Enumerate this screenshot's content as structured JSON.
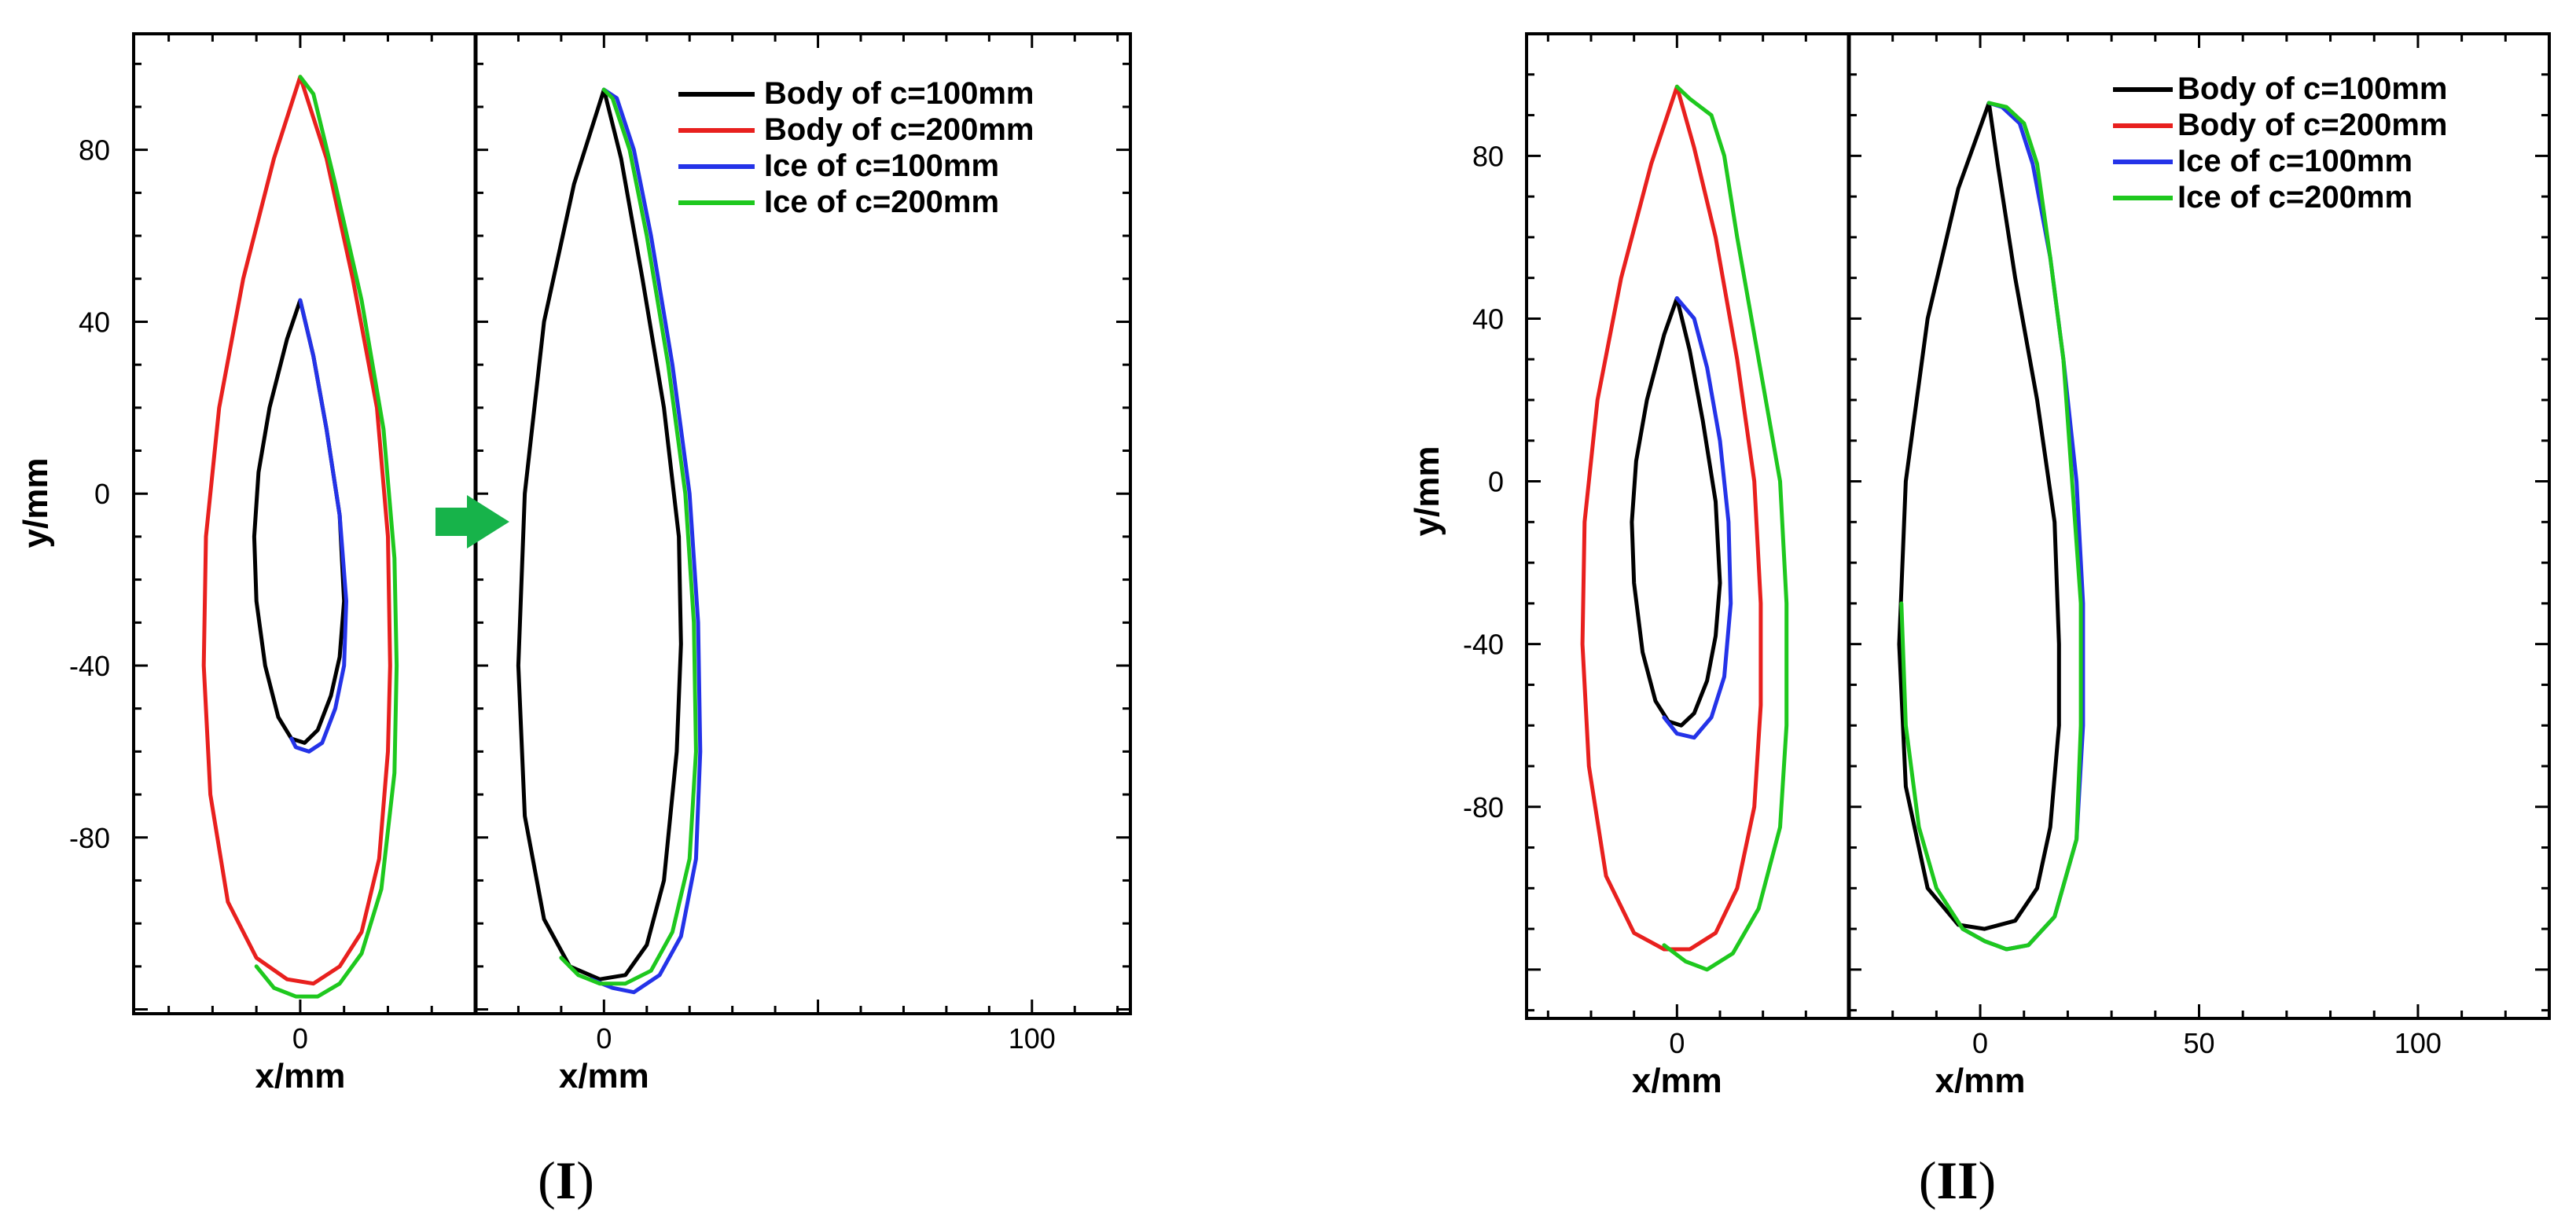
{
  "figure": {
    "panel_labels": [
      {
        "open": "(",
        "roman": "I",
        "close": ")"
      },
      {
        "open": "(",
        "roman": "II",
        "close": ")"
      }
    ]
  },
  "colors": {
    "body_100": "#000000",
    "body_200": "#e8201e",
    "ice_100": "#2433e8",
    "ice_200": "#1ec81e",
    "arrow": "#17b34a"
  },
  "chart_data": [
    {
      "type": "line",
      "id": "panel-I",
      "title": "",
      "subplots": [
        {
          "name": "left-overlay",
          "xlabel": "x/mm",
          "ylabel": "y/mm",
          "xlim": [
            -38,
            40
          ],
          "ylim": [
            -121,
            107
          ],
          "xticks": [
            0
          ],
          "yticks": [
            80,
            40,
            0,
            -40,
            -80
          ]
        },
        {
          "name": "right-scaled",
          "xlabel": "x/mm",
          "ylabel": "",
          "xlim": [
            -30,
            123
          ],
          "ylim": [
            -121,
            107
          ],
          "xticks": [
            0,
            100
          ],
          "yticks": []
        }
      ],
      "legend": {
        "position": "top-right",
        "entries": [
          "Body of c=100mm",
          "Body of c=200mm",
          "Ice of c=100mm",
          "Ice of c=200mm"
        ]
      },
      "annotation": "arrow pointing from left subplot to right subplot",
      "series": [
        {
          "name": "Body of c=100mm",
          "subplot": "left-overlay",
          "points": [
            [
              0,
              45
            ],
            [
              -3,
              36
            ],
            [
              -7,
              20
            ],
            [
              -9.5,
              5
            ],
            [
              -10.5,
              -10
            ],
            [
              -10,
              -25
            ],
            [
              -8,
              -40
            ],
            [
              -5,
              -52
            ],
            [
              -2,
              -57
            ],
            [
              1,
              -58
            ],
            [
              4,
              -55
            ],
            [
              7,
              -47
            ],
            [
              9,
              -38
            ],
            [
              10,
              -25
            ],
            [
              9,
              -5
            ],
            [
              6,
              15
            ],
            [
              3,
              32
            ],
            [
              0,
              45
            ]
          ]
        },
        {
          "name": "Ice of c=100mm",
          "subplot": "left-overlay",
          "points": [
            [
              0,
              45
            ],
            [
              3,
              32
            ],
            [
              6,
              15
            ],
            [
              9,
              -5
            ],
            [
              10.5,
              -25
            ],
            [
              10,
              -40
            ],
            [
              8,
              -50
            ],
            [
              5,
              -58
            ],
            [
              2,
              -60
            ],
            [
              -1,
              -59
            ],
            [
              -2,
              -57
            ]
          ]
        },
        {
          "name": "Body of c=200mm",
          "subplot": "left-overlay",
          "points": [
            [
              0,
              97
            ],
            [
              -6,
              78
            ],
            [
              -13,
              50
            ],
            [
              -18.5,
              20
            ],
            [
              -21.5,
              -10
            ],
            [
              -22,
              -40
            ],
            [
              -20.5,
              -70
            ],
            [
              -16.5,
              -95
            ],
            [
              -10,
              -108
            ],
            [
              -3,
              -113
            ],
            [
              3,
              -114
            ],
            [
              9,
              -110
            ],
            [
              14,
              -102
            ],
            [
              18,
              -85
            ],
            [
              20,
              -60
            ],
            [
              20.5,
              -40
            ],
            [
              20,
              -10
            ],
            [
              17.5,
              20
            ],
            [
              12,
              50
            ],
            [
              6,
              78
            ],
            [
              0,
              97
            ]
          ]
        },
        {
          "name": "Ice of c=200mm",
          "subplot": "left-overlay",
          "points": [
            [
              0,
              97
            ],
            [
              3,
              93
            ],
            [
              8,
              72
            ],
            [
              14,
              45
            ],
            [
              19,
              15
            ],
            [
              21.5,
              -15
            ],
            [
              22,
              -40
            ],
            [
              21.5,
              -65
            ],
            [
              18.5,
              -92
            ],
            [
              14,
              -107
            ],
            [
              9,
              -114
            ],
            [
              4,
              -117
            ],
            [
              -1,
              -117
            ],
            [
              -6,
              -115
            ],
            [
              -10,
              -110
            ]
          ]
        },
        {
          "name": "Body of c=100mm",
          "subplot": "right-scaled",
          "points": [
            [
              0,
              94
            ],
            [
              -7,
              72
            ],
            [
              -14,
              40
            ],
            [
              -18.5,
              0
            ],
            [
              -20,
              -40
            ],
            [
              -18.5,
              -75
            ],
            [
              -14,
              -99
            ],
            [
              -8,
              -110
            ],
            [
              -1,
              -113
            ],
            [
              5,
              -112
            ],
            [
              10,
              -105
            ],
            [
              14,
              -90
            ],
            [
              17,
              -60
            ],
            [
              18,
              -35
            ],
            [
              17.5,
              -10
            ],
            [
              14,
              20
            ],
            [
              9,
              50
            ],
            [
              4,
              78
            ],
            [
              0,
              94
            ]
          ]
        },
        {
          "name": "Ice of c=100mm",
          "subplot": "right-scaled",
          "points": [
            [
              0,
              94
            ],
            [
              3,
              92
            ],
            [
              7,
              80
            ],
            [
              11,
              60
            ],
            [
              16,
              30
            ],
            [
              20,
              0
            ],
            [
              22,
              -30
            ],
            [
              22.5,
              -60
            ],
            [
              21.5,
              -85
            ],
            [
              18,
              -103
            ],
            [
              13,
              -112
            ],
            [
              7,
              -116
            ],
            [
              2,
              -115
            ],
            [
              -3,
              -113
            ]
          ]
        },
        {
          "name": "Ice of c=200mm",
          "subplot": "right-scaled",
          "points": [
            [
              0,
              94
            ],
            [
              2,
              92
            ],
            [
              6,
              80
            ],
            [
              10,
              60
            ],
            [
              15,
              30
            ],
            [
              19,
              0
            ],
            [
              21,
              -30
            ],
            [
              21.5,
              -60
            ],
            [
              20,
              -85
            ],
            [
              16,
              -102
            ],
            [
              11,
              -111
            ],
            [
              5,
              -114
            ],
            [
              -1,
              -114
            ],
            [
              -6,
              -112
            ],
            [
              -10,
              -108
            ]
          ]
        }
      ]
    },
    {
      "type": "line",
      "id": "panel-II",
      "title": "",
      "subplots": [
        {
          "name": "left-overlay",
          "xlabel": "x/mm",
          "ylabel": "y/mm",
          "xlim": [
            -35,
            40
          ],
          "ylim": [
            -132,
            110
          ],
          "xticks": [
            0
          ],
          "yticks": [
            80,
            40,
            0,
            -40,
            -80
          ]
        },
        {
          "name": "right-scaled",
          "xlabel": "x/mm",
          "ylabel": "",
          "xlim": [
            -30,
            130
          ],
          "ylim": [
            -132,
            110
          ],
          "xticks": [
            0,
            50,
            100
          ],
          "yticks": []
        }
      ],
      "legend": {
        "position": "top-right",
        "entries": [
          "Body of c=100mm",
          "Body of c=200mm",
          "Ice of c=100mm",
          "Ice of c=200mm"
        ]
      },
      "series": [
        {
          "name": "Body of c=100mm",
          "subplot": "left-overlay",
          "points": [
            [
              0,
              45
            ],
            [
              -3,
              36
            ],
            [
              -7,
              20
            ],
            [
              -9.5,
              5
            ],
            [
              -10.5,
              -10
            ],
            [
              -10,
              -25
            ],
            [
              -8,
              -42
            ],
            [
              -5,
              -54
            ],
            [
              -2,
              -59
            ],
            [
              1,
              -60
            ],
            [
              4,
              -57
            ],
            [
              7,
              -49
            ],
            [
              9,
              -38
            ],
            [
              10,
              -25
            ],
            [
              9,
              -5
            ],
            [
              6,
              15
            ],
            [
              3,
              32
            ],
            [
              0,
              45
            ]
          ]
        },
        {
          "name": "Ice of c=100mm",
          "subplot": "left-overlay",
          "points": [
            [
              0,
              45
            ],
            [
              4,
              40
            ],
            [
              7,
              28
            ],
            [
              10,
              10
            ],
            [
              12,
              -10
            ],
            [
              12.5,
              -30
            ],
            [
              11,
              -48
            ],
            [
              8,
              -58
            ],
            [
              4,
              -63
            ],
            [
              0,
              -62
            ],
            [
              -3,
              -58
            ]
          ]
        },
        {
          "name": "Body of c=200mm",
          "subplot": "left-overlay",
          "points": [
            [
              0,
              97
            ],
            [
              -6,
              78
            ],
            [
              -13,
              50
            ],
            [
              -18.5,
              20
            ],
            [
              -21.5,
              -10
            ],
            [
              -22,
              -40
            ],
            [
              -20.5,
              -70
            ],
            [
              -16.5,
              -97
            ],
            [
              -10,
              -111
            ],
            [
              -3,
              -115
            ],
            [
              3,
              -115
            ],
            [
              9,
              -111
            ],
            [
              14,
              -100
            ],
            [
              18,
              -80
            ],
            [
              19.5,
              -55
            ],
            [
              19.5,
              -30
            ],
            [
              18,
              0
            ],
            [
              14,
              30
            ],
            [
              9,
              60
            ],
            [
              4,
              82
            ],
            [
              0,
              97
            ]
          ]
        },
        {
          "name": "Ice of c=200mm",
          "subplot": "left-overlay",
          "points": [
            [
              0,
              97
            ],
            [
              3,
              94
            ],
            [
              8,
              90
            ],
            [
              11,
              80
            ],
            [
              14,
              60
            ],
            [
              19,
              30
            ],
            [
              24,
              0
            ],
            [
              25.5,
              -30
            ],
            [
              25.5,
              -60
            ],
            [
              24,
              -85
            ],
            [
              19,
              -105
            ],
            [
              13,
              -116
            ],
            [
              7,
              -120
            ],
            [
              2,
              -118
            ],
            [
              -3,
              -114
            ]
          ]
        },
        {
          "name": "Body of c=100mm",
          "subplot": "right-scaled",
          "points": [
            [
              2,
              93
            ],
            [
              -5,
              72
            ],
            [
              -12,
              40
            ],
            [
              -17,
              0
            ],
            [
              -18.5,
              -40
            ],
            [
              -17,
              -75
            ],
            [
              -12,
              -100
            ],
            [
              -5,
              -109
            ],
            [
              1,
              -110
            ],
            [
              8,
              -108
            ],
            [
              13,
              -100
            ],
            [
              16,
              -85
            ],
            [
              18,
              -60
            ],
            [
              18,
              -40
            ],
            [
              17,
              -10
            ],
            [
              13,
              20
            ],
            [
              8,
              50
            ],
            [
              4,
              78
            ],
            [
              2,
              93
            ]
          ]
        },
        {
          "name": "Ice of c=100mm",
          "subplot": "right-scaled",
          "points": [
            [
              2,
              93
            ],
            [
              5,
              92
            ],
            [
              9,
              88
            ],
            [
              12,
              78
            ],
            [
              16,
              55
            ],
            [
              19,
              30
            ],
            [
              22,
              0
            ],
            [
              23.5,
              -30
            ],
            [
              23.5,
              -60
            ],
            [
              22,
              -88
            ],
            [
              17,
              -107
            ],
            [
              11,
              -114
            ],
            [
              6,
              -115
            ],
            [
              1,
              -113
            ],
            [
              -4,
              -110
            ]
          ]
        },
        {
          "name": "Ice of c=200mm",
          "subplot": "right-scaled",
          "points": [
            [
              2,
              93
            ],
            [
              6,
              92
            ],
            [
              10,
              88
            ],
            [
              13,
              78
            ],
            [
              16,
              55
            ],
            [
              19,
              30
            ],
            [
              21,
              0
            ],
            [
              23,
              -30
            ],
            [
              23,
              -60
            ],
            [
              22,
              -88
            ],
            [
              17,
              -107
            ],
            [
              11,
              -114
            ],
            [
              6,
              -115
            ],
            [
              1,
              -113
            ],
            [
              -4,
              -110
            ],
            [
              -10,
              -100
            ],
            [
              -14,
              -85
            ],
            [
              -17,
              -60
            ],
            [
              -18,
              -30
            ]
          ]
        }
      ]
    }
  ]
}
